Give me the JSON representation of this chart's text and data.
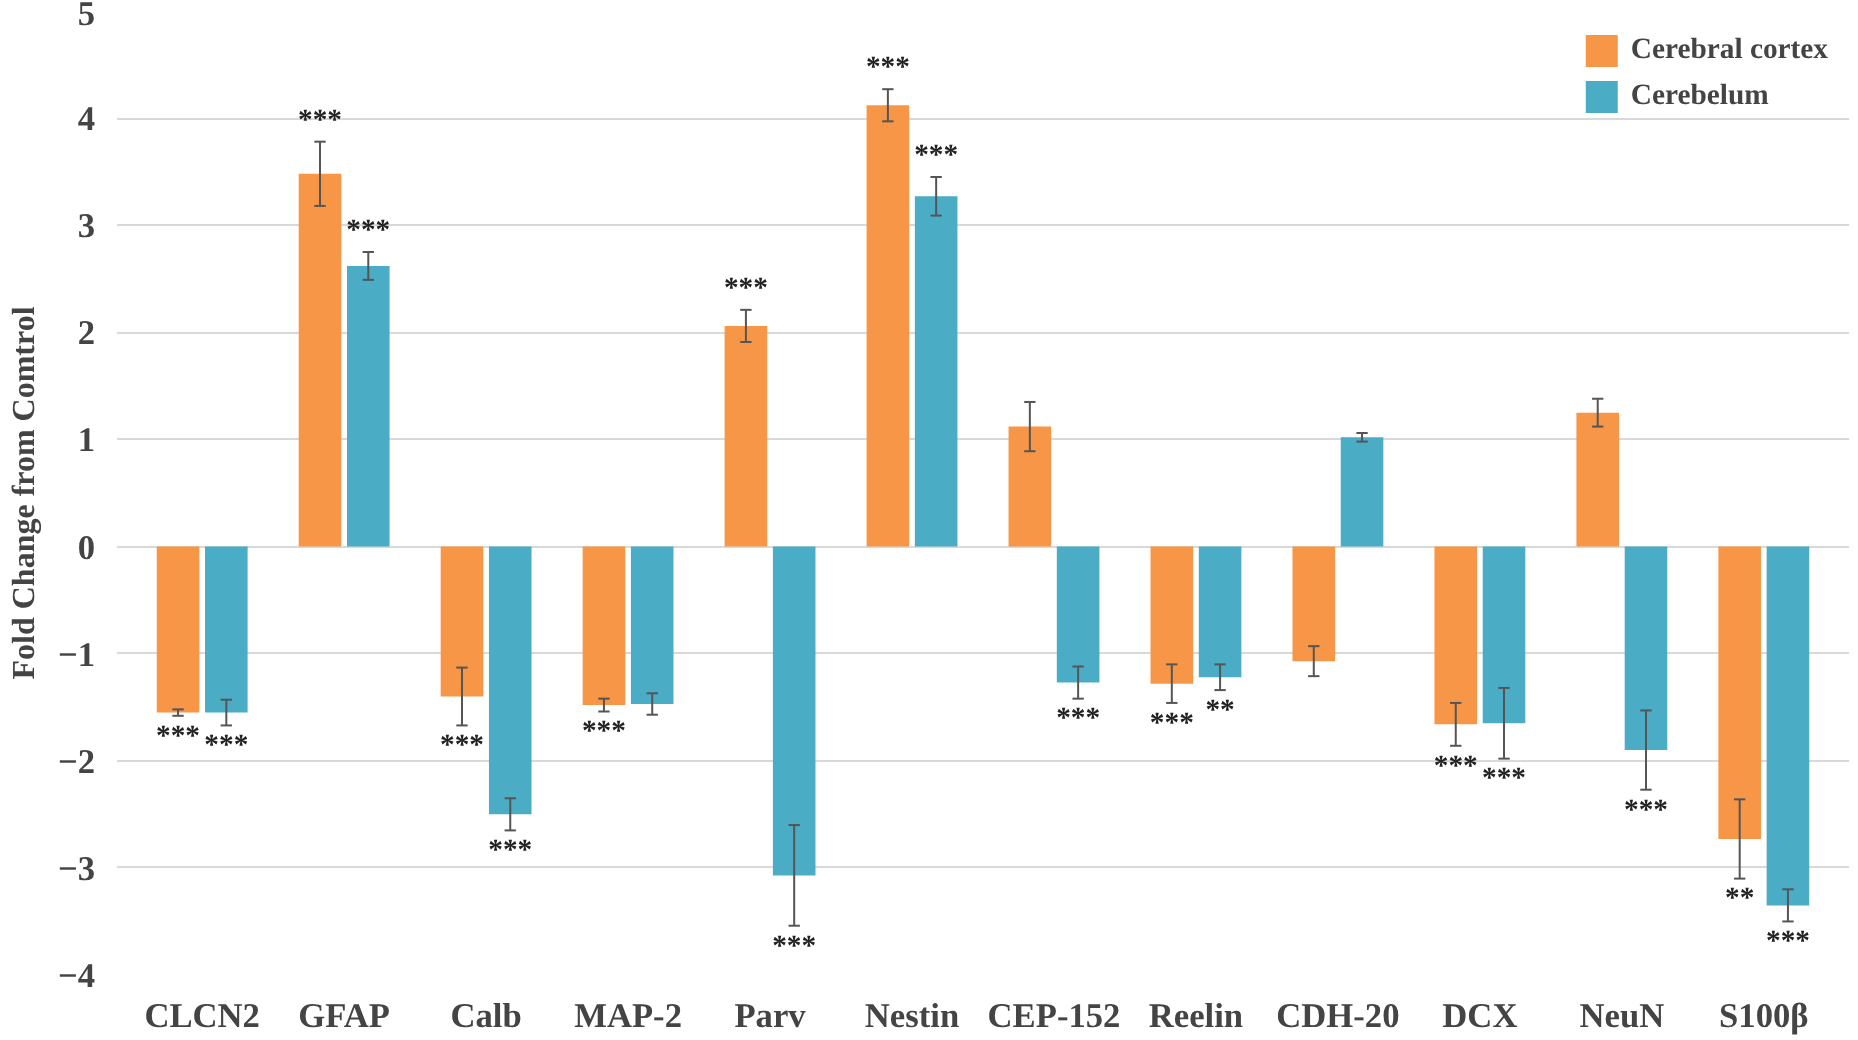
{
  "chart_data": {
    "type": "bar",
    "ylabel": "Fold Change from Comtrol",
    "categories": [
      "CLCN2",
      "GFAP",
      "Calb",
      "MAP-2",
      "Parv",
      "Nestin",
      "CEP-152",
      "Reelin",
      "CDH-20",
      "DCX",
      "NeuN",
      "S100β"
    ],
    "series": [
      {
        "name": "Cerebral cortex",
        "color": "#f79646",
        "values": [
          -1.55,
          3.48,
          -1.4,
          -1.48,
          2.06,
          4.12,
          1.12,
          -1.28,
          -1.07,
          -1.66,
          1.25,
          -2.73
        ],
        "errors": [
          0.03,
          0.3,
          0.27,
          0.06,
          0.15,
          0.15,
          0.23,
          0.18,
          0.14,
          0.2,
          0.13,
          0.37
        ],
        "value_labels": [
          "***",
          "***",
          "***",
          "***",
          "***",
          "***",
          null,
          "***",
          null,
          "***",
          null,
          "**"
        ]
      },
      {
        "name": "Cerebelum",
        "color": "#4bacc6",
        "values": [
          -1.55,
          2.62,
          -2.5,
          -1.47,
          -3.07,
          3.27,
          -1.27,
          -1.22,
          1.02,
          -1.65,
          -1.9,
          -3.35
        ],
        "errors": [
          0.12,
          0.13,
          0.15,
          0.1,
          0.47,
          0.18,
          0.15,
          0.12,
          0.04,
          0.33,
          0.37,
          0.15
        ],
        "value_labels": [
          "***",
          "***",
          "***",
          null,
          "***",
          "***",
          "***",
          "**",
          null,
          "***",
          "***",
          "***"
        ]
      }
    ],
    "ylim": [
      -4,
      5
    ],
    "yticks": [
      -4,
      -3,
      -2,
      -1,
      0,
      1,
      2,
      3,
      4,
      5
    ],
    "grid": "y",
    "legend": "top right"
  }
}
